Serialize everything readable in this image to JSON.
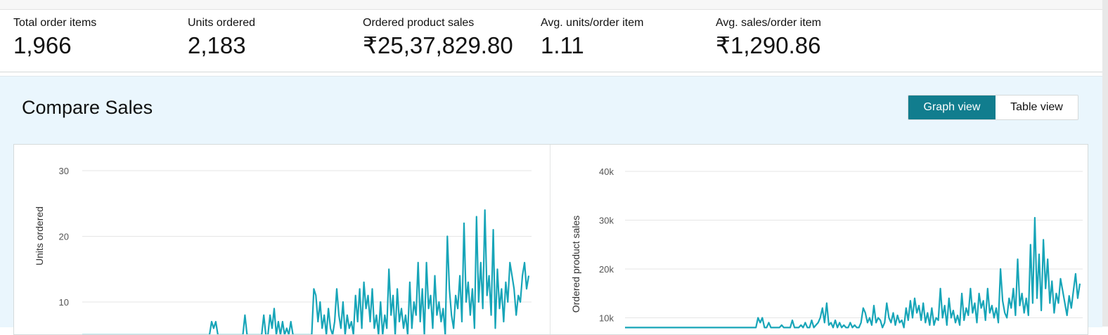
{
  "metrics": [
    {
      "label": "Total order items",
      "value": "1,966"
    },
    {
      "label": "Units ordered",
      "value": "2,183"
    },
    {
      "label": "Ordered product sales",
      "value": "₹25,37,829.80"
    },
    {
      "label": "Avg. units/order item",
      "value": "1.11"
    },
    {
      "label": "Avg. sales/order item",
      "value": "₹1,290.86"
    }
  ],
  "compare": {
    "title": "Compare Sales",
    "view_toggle": {
      "graph_label": "Graph view",
      "table_label": "Table view",
      "selected": "Graph view"
    }
  },
  "colors": {
    "accent": "#117d8e",
    "series": "#17a5b8",
    "panel_bg": "#eaf6fd"
  },
  "chart_data": [
    {
      "type": "line",
      "title": "",
      "ylabel": "Units ordered",
      "xlabel": "",
      "ylim": [
        5,
        30
      ],
      "yticks": [
        10,
        20,
        30
      ],
      "ytick_labels": [
        "10",
        "20",
        "30"
      ],
      "grid": true,
      "series": [
        {
          "values": [
            5,
            5,
            5,
            5,
            5,
            5,
            5,
            5,
            5,
            5,
            5,
            5,
            5,
            5,
            5,
            5,
            5,
            5,
            5,
            5,
            5,
            5,
            5,
            5,
            5,
            5,
            5,
            5,
            5,
            5,
            5,
            5,
            5,
            5,
            5,
            5,
            5,
            5,
            5,
            5,
            5,
            5,
            5,
            5,
            5,
            5,
            5,
            5,
            5,
            5,
            5,
            5,
            5,
            5,
            5,
            5,
            5,
            5,
            5,
            5,
            5,
            5,
            7,
            6,
            7,
            5,
            5,
            5,
            5,
            5,
            5,
            5,
            5,
            5,
            5,
            5,
            5,
            5,
            8,
            5,
            5,
            5,
            5,
            5,
            5,
            5,
            5,
            8,
            5,
            5,
            8,
            6,
            9,
            5,
            7,
            5,
            7,
            5,
            6,
            5,
            7,
            5,
            5,
            5,
            5,
            5,
            5,
            5,
            5,
            5,
            5,
            12,
            11,
            7,
            10,
            6,
            8,
            5,
            9,
            6,
            5,
            7,
            12,
            8,
            6,
            10,
            5,
            8,
            6,
            7,
            5,
            11,
            7,
            12,
            6,
            13,
            9,
            11,
            7,
            12,
            6,
            8,
            5,
            10,
            5,
            8,
            6,
            15,
            8,
            11,
            5,
            12,
            7,
            9,
            6,
            8,
            5,
            13,
            6,
            10,
            8,
            16,
            7,
            12,
            5,
            16,
            9,
            11,
            6,
            14,
            8,
            10,
            7,
            9,
            5,
            20,
            12,
            8,
            6,
            11,
            9,
            14,
            7,
            22,
            10,
            13,
            8,
            12,
            6,
            23,
            10,
            16,
            9,
            24,
            11,
            14,
            8,
            21,
            6,
            15,
            9,
            12,
            7,
            13,
            10,
            16,
            14,
            12,
            8,
            11,
            10,
            14,
            16,
            12,
            14
          ]
        }
      ]
    },
    {
      "type": "line",
      "title": "",
      "ylabel": "Ordered product sales",
      "xlabel": "",
      "ylim": [
        8000,
        40000
      ],
      "yticks": [
        10000,
        20000,
        30000,
        40000
      ],
      "ytick_labels": [
        "10k",
        "20k",
        "30k",
        "40k"
      ],
      "grid": true,
      "series": [
        {
          "values": [
            8000,
            8000,
            8000,
            8000,
            8000,
            8000,
            8000,
            8000,
            8000,
            8000,
            8000,
            8000,
            8000,
            8000,
            8000,
            8000,
            8000,
            8000,
            8000,
            8000,
            8000,
            8000,
            8000,
            8000,
            8000,
            8000,
            8000,
            8000,
            8000,
            8000,
            8000,
            8000,
            8000,
            8000,
            8000,
            8000,
            8000,
            8000,
            8000,
            8000,
            8000,
            8000,
            8000,
            8000,
            8000,
            8000,
            8000,
            8000,
            8000,
            8000,
            8000,
            8000,
            8000,
            8000,
            8000,
            8000,
            8000,
            8000,
            8000,
            8000,
            8000,
            8000,
            10000,
            9000,
            10000,
            8000,
            8000,
            9000,
            8000,
            8000,
            8000,
            8000,
            8000,
            8500,
            8000,
            8000,
            8000,
            8000,
            9500,
            8000,
            8000,
            8000,
            8500,
            8000,
            9000,
            8000,
            8000,
            9500,
            8000,
            8500,
            9000,
            10000,
            12000,
            9000,
            13000,
            8500,
            9000,
            8000,
            9500,
            8000,
            9000,
            8000,
            8500,
            8000,
            8000,
            9000,
            8000,
            8500,
            8000,
            8000,
            9000,
            12000,
            11000,
            9000,
            10000,
            8500,
            12500,
            9000,
            10000,
            9500,
            8000,
            9000,
            13000,
            10000,
            9000,
            11000,
            8500,
            10500,
            9000,
            9500,
            8000,
            12000,
            9500,
            13500,
            10000,
            14000,
            11000,
            12500,
            9500,
            13000,
            9000,
            11000,
            8500,
            12000,
            8500,
            10000,
            9500,
            16000,
            10000,
            12500,
            8500,
            14000,
            10000,
            11500,
            9000,
            10500,
            8500,
            15000,
            9500,
            12000,
            10500,
            16000,
            11000,
            13000,
            9000,
            15000,
            12000,
            13500,
            9500,
            16000,
            11000,
            12500,
            10000,
            12000,
            9000,
            20000,
            13500,
            11000,
            10000,
            14000,
            12000,
            16000,
            10500,
            22000,
            12500,
            15000,
            11000,
            14000,
            10500,
            25000,
            13000,
            30500,
            14000,
            23000,
            11500,
            26000,
            16000,
            22000,
            13000,
            17500,
            11000,
            15000,
            13000,
            18000,
            15500,
            13000,
            10500,
            14500,
            12000,
            15500,
            19000,
            14000,
            17000
          ]
        }
      ]
    }
  ]
}
